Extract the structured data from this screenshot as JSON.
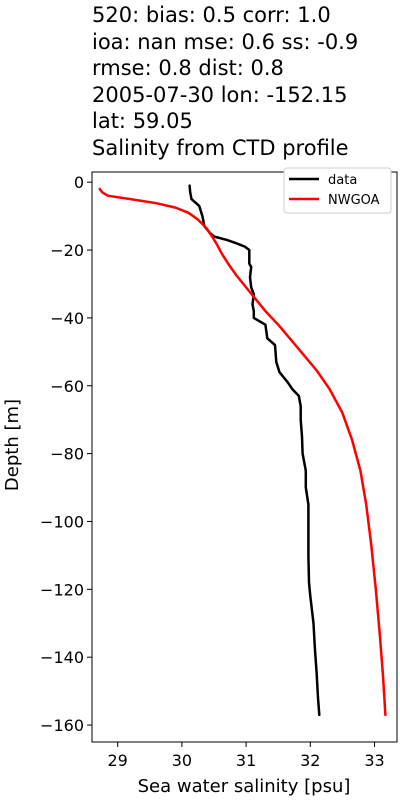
{
  "title_lines": [
    "520: bias: 0.5  corr: 1.0",
    "ioa: nan  mse: 0.6  ss: -0.9",
    "rmse: 0.8  dist: 0.8",
    "2005-07-30 lon: -152.15",
    "lat: 59.05",
    "Salinity from CTD profile"
  ],
  "chart_data": {
    "type": "line",
    "xlabel": "Sea water salinity [psu]",
    "ylabel": "Depth [m]",
    "xlim": [
      28.6,
      33.35
    ],
    "ylim": [
      -165,
      3
    ],
    "xticks": [
      29,
      30,
      31,
      32,
      33
    ],
    "xtick_labels": [
      "29",
      "30",
      "31",
      "32",
      "33"
    ],
    "yticks": [
      0,
      -20,
      -40,
      -60,
      -80,
      -100,
      -120,
      -140,
      -160
    ],
    "ytick_labels": [
      "0",
      "−20",
      "−40",
      "−60",
      "−80",
      "−100",
      "−120",
      "−140",
      "−160"
    ],
    "grid": false,
    "legend_position": "top-right",
    "series": [
      {
        "name": "data",
        "color": "#000000",
        "points": [
          [
            30.12,
            -1
          ],
          [
            30.13,
            -3
          ],
          [
            30.15,
            -5
          ],
          [
            30.27,
            -7
          ],
          [
            30.32,
            -10
          ],
          [
            30.35,
            -13
          ],
          [
            30.44,
            -15
          ],
          [
            30.5,
            -16
          ],
          [
            30.7,
            -17
          ],
          [
            30.85,
            -18
          ],
          [
            30.98,
            -19
          ],
          [
            31.05,
            -20
          ],
          [
            31.05,
            -24
          ],
          [
            31.08,
            -25
          ],
          [
            31.06,
            -28
          ],
          [
            31.08,
            -31
          ],
          [
            31.12,
            -33
          ],
          [
            31.1,
            -36
          ],
          [
            31.12,
            -38
          ],
          [
            31.12,
            -40
          ],
          [
            31.3,
            -42
          ],
          [
            31.33,
            -46
          ],
          [
            31.45,
            -48
          ],
          [
            31.47,
            -53
          ],
          [
            31.52,
            -56
          ],
          [
            31.65,
            -59
          ],
          [
            31.72,
            -61
          ],
          [
            31.82,
            -63
          ],
          [
            31.85,
            -66
          ],
          [
            31.85,
            -70
          ],
          [
            31.87,
            -75
          ],
          [
            31.88,
            -80
          ],
          [
            31.93,
            -85
          ],
          [
            31.93,
            -90
          ],
          [
            31.97,
            -95
          ],
          [
            31.97,
            -110
          ],
          [
            31.98,
            -118
          ],
          [
            32.0,
            -122
          ],
          [
            32.05,
            -130
          ],
          [
            32.07,
            -137
          ],
          [
            32.1,
            -145
          ],
          [
            32.12,
            -152
          ],
          [
            32.14,
            -157
          ]
        ]
      },
      {
        "name": "NWGOA",
        "color": "#ff0000",
        "points": [
          [
            28.72,
            -2
          ],
          [
            28.76,
            -3
          ],
          [
            28.85,
            -4
          ],
          [
            29.2,
            -5
          ],
          [
            29.6,
            -6.2
          ],
          [
            29.9,
            -7.5
          ],
          [
            30.1,
            -9
          ],
          [
            30.25,
            -11
          ],
          [
            30.38,
            -13.5
          ],
          [
            30.47,
            -16
          ],
          [
            30.55,
            -18.5
          ],
          [
            30.62,
            -21
          ],
          [
            30.72,
            -24
          ],
          [
            30.85,
            -27.5
          ],
          [
            31.0,
            -31
          ],
          [
            31.15,
            -34.5
          ],
          [
            31.3,
            -38
          ],
          [
            31.5,
            -42
          ],
          [
            31.7,
            -46.5
          ],
          [
            31.9,
            -51
          ],
          [
            32.1,
            -55.5
          ],
          [
            32.3,
            -61
          ],
          [
            32.5,
            -68
          ],
          [
            32.65,
            -76
          ],
          [
            32.78,
            -85
          ],
          [
            32.87,
            -95
          ],
          [
            32.95,
            -107
          ],
          [
            33.02,
            -120
          ],
          [
            33.08,
            -133
          ],
          [
            33.13,
            -145
          ],
          [
            33.17,
            -157
          ]
        ]
      }
    ]
  }
}
